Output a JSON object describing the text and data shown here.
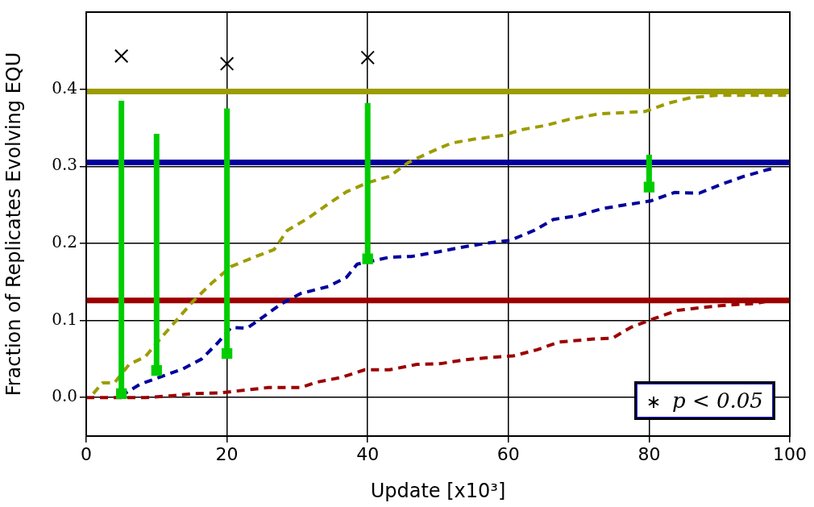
{
  "chart_data": {
    "type": "line",
    "xlabel": "Update [x10³]",
    "ylabel": "Fraction of Replicates Evolving EQU",
    "xlim": [
      0,
      100
    ],
    "xticks": [
      0,
      20,
      40,
      60,
      80,
      100
    ],
    "ylim": [
      -0.05,
      0.5
    ],
    "yticks": [
      {
        "value": 0,
        "label": "0.0"
      },
      {
        "value": 0.1,
        "label": "0.1"
      },
      {
        "value": 0.2,
        "label": "0.2"
      },
      {
        "value": 0.3,
        "label": "0.3"
      },
      {
        "value": 0.4,
        "label": "0.4"
      }
    ],
    "grid": true,
    "legend": "bottom right",
    "ref_lines": [
      {
        "axis": "y",
        "value": 0.397,
        "color": "#9c9c00"
      },
      {
        "axis": "y",
        "value": 0.305,
        "color": "#00009c"
      },
      {
        "axis": "y",
        "value": 0.126,
        "color": "#9c0000"
      }
    ],
    "series": [
      {
        "color": "#9c9c00",
        "line_style": "dashed",
        "marker": "none",
        "x": [
          1,
          2.3,
          4,
          6.1,
          8.4,
          10.6,
          12.9,
          15.2,
          17.9,
          20.6,
          23.3,
          26.7,
          28.6,
          31.6,
          33.9,
          37,
          40.1,
          43.1,
          45.8,
          48.8,
          51.9,
          55,
          59.1,
          62.2,
          65.3,
          68.7,
          72.9,
          79.4,
          82.8,
          85.9,
          89.7,
          99.7
        ],
        "values": [
          0.005,
          0.019,
          0.019,
          0.043,
          0.053,
          0.077,
          0.101,
          0.125,
          0.149,
          0.17,
          0.18,
          0.192,
          0.217,
          0.233,
          0.248,
          0.267,
          0.279,
          0.287,
          0.305,
          0.318,
          0.33,
          0.335,
          0.34,
          0.348,
          0.353,
          0.361,
          0.368,
          0.371,
          0.382,
          0.389,
          0.392,
          0.392
        ]
      },
      {
        "color": "#00009c",
        "line_style": "dashed",
        "marker": "none",
        "x": [
          4.9,
          7.6,
          10.3,
          13.7,
          16.4,
          18.7,
          20.6,
          22.9,
          25.2,
          27.8,
          30.5,
          34.4,
          37,
          38.5,
          43.1,
          46.2,
          50,
          53.4,
          56.8,
          60.3,
          63.7,
          66.4,
          69.9,
          73.3,
          76.7,
          80.2,
          83.6,
          87.1,
          90.1,
          93.5,
          96.6,
          98
        ],
        "values": [
          0.002,
          0.017,
          0.026,
          0.037,
          0.05,
          0.071,
          0.091,
          0.09,
          0.105,
          0.122,
          0.135,
          0.144,
          0.156,
          0.173,
          0.182,
          0.183,
          0.189,
          0.195,
          0.2,
          0.204,
          0.217,
          0.231,
          0.236,
          0.245,
          0.25,
          0.255,
          0.266,
          0.265,
          0.276,
          0.287,
          0.295,
          0.298
        ]
      },
      {
        "color": "#9c0000",
        "line_style": "dashed",
        "marker": "none",
        "x": [
          0,
          8.4,
          11.8,
          15.2,
          19,
          25.9,
          30.5,
          32.8,
          36.2,
          39.6,
          43.1,
          47,
          50.4,
          53.8,
          57.6,
          60.7,
          64.1,
          67.2,
          72.2,
          74.8,
          77.4,
          80.9,
          84,
          87.7,
          91.2,
          95.1,
          98
        ],
        "values": [
          0,
          0,
          0.002,
          0.005,
          0.006,
          0.013,
          0.013,
          0.02,
          0.026,
          0.036,
          0.036,
          0.043,
          0.044,
          0.049,
          0.052,
          0.054,
          0.062,
          0.072,
          0.076,
          0.077,
          0.091,
          0.103,
          0.113,
          0.117,
          0.12,
          0.122,
          0.127
        ]
      },
      {
        "type": "scatter",
        "color": "#00cc00",
        "marker": "square",
        "x": [
          5,
          10,
          20,
          40,
          80
        ],
        "values": [
          0.005,
          0.035,
          0.057,
          0.18,
          0.273
        ],
        "errors": [
          [
            0.005,
            0.385
          ],
          [
            0.035,
            0.342
          ],
          [
            0.057,
            0.375
          ],
          [
            0.18,
            0.382
          ],
          [
            0.273,
            0.315
          ]
        ]
      },
      {
        "type": "scatter",
        "name": "p < 0.05",
        "color": "#000000",
        "marker": "cross",
        "x": [
          5,
          20,
          40
        ],
        "values": [
          0.443,
          0.433,
          0.441
        ]
      }
    ]
  }
}
